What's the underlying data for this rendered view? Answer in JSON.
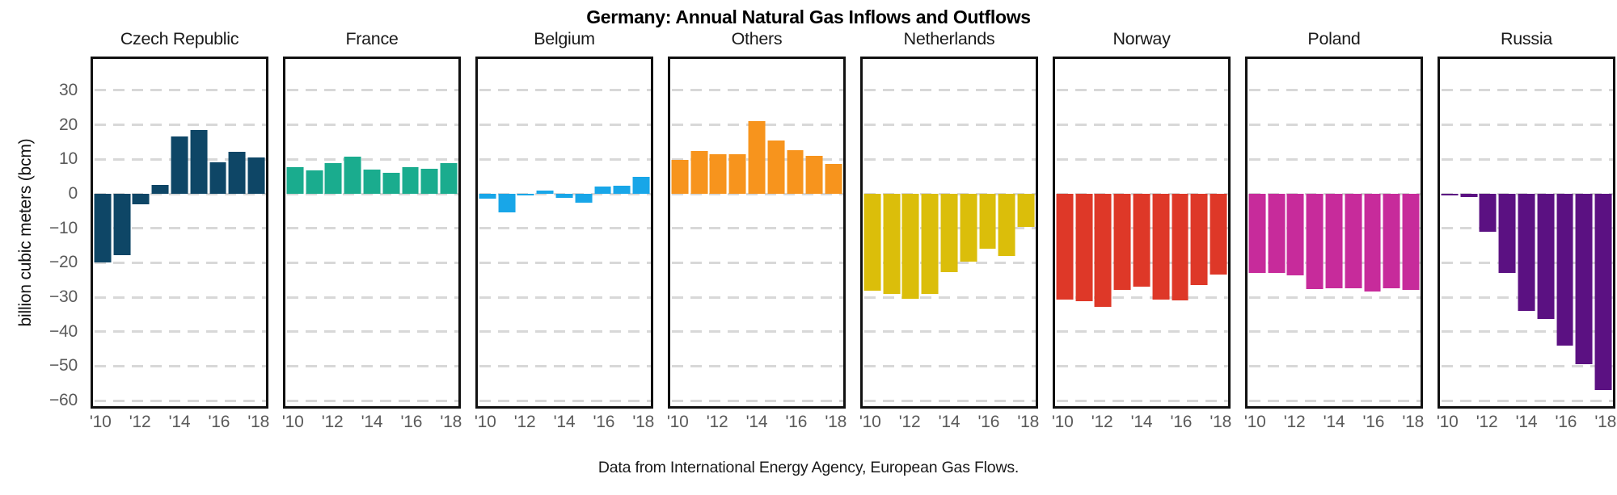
{
  "title": "Germany: Annual Natural Gas Inflows and Outflows",
  "caption": "Data from International Energy Agency, European Gas Flows.",
  "chart_data": {
    "type": "bar",
    "title": "Germany: Annual Natural Gas Inflows and Outflows",
    "caption": "Data from International Energy Agency, European Gas Flows.",
    "ylabel": "billion cubic meters (bcm)",
    "grid": "horizontal-dashed",
    "legend": "none",
    "ylim": [
      -62,
      40
    ],
    "y_ticks": [
      30,
      20,
      10,
      0,
      -10,
      -20,
      -30,
      -40,
      -50,
      -60
    ],
    "y_tick_labels": [
      "30",
      "20",
      "10",
      "0",
      "−10",
      "−20",
      "−30",
      "−40",
      "−50",
      "−60"
    ],
    "years": [
      2010,
      2011,
      2012,
      2013,
      2014,
      2015,
      2016,
      2017,
      2018
    ],
    "x_tick_labels": [
      "'10",
      "'12",
      "'14",
      "'16",
      "'18"
    ],
    "x_tick_slots": [
      0,
      2,
      4,
      6,
      8
    ],
    "panels": [
      {
        "name": "Czech Republic",
        "color": "#0E4666",
        "values": [
          -20,
          -17.7,
          -3,
          2.5,
          16.7,
          18.5,
          9.2,
          12.3,
          10.6
        ]
      },
      {
        "name": "France",
        "color": "#1AAC8E",
        "values": [
          7.8,
          6.7,
          9,
          10.8,
          7,
          6,
          7.8,
          7.3,
          9
        ]
      },
      {
        "name": "Belgium",
        "color": "#18A6E8",
        "values": [
          -1.5,
          -5.5,
          -0.5,
          1,
          -1.2,
          -2.5,
          2.2,
          2.3,
          5
        ]
      },
      {
        "name": "Others",
        "color": "#F7941D",
        "values": [
          9.8,
          12.5,
          11.5,
          11.5,
          21,
          15.4,
          12.7,
          11,
          8.7
        ]
      },
      {
        "name": "Netherlands",
        "color": "#DBBE0A",
        "values": [
          -28.1,
          -29.1,
          -30.5,
          -29.1,
          -22.7,
          -19.6,
          -16,
          -18.1,
          -9.5
        ]
      },
      {
        "name": "Norway",
        "color": "#DE3828",
        "values": [
          -30.6,
          -31.2,
          -32.7,
          -28,
          -27,
          -30.8,
          -31,
          -26.5,
          -23.5
        ]
      },
      {
        "name": "Poland",
        "color": "#C72B9B",
        "values": [
          -23,
          -23,
          -23.7,
          -27.7,
          -27.5,
          -27.5,
          -28.3,
          -27.5,
          -28
        ]
      },
      {
        "name": "Russia",
        "color": "#5B1182",
        "values": [
          -0.3,
          -1,
          -11,
          -23,
          -34,
          -36.3,
          -44,
          -49.5,
          -57
        ]
      }
    ]
  }
}
